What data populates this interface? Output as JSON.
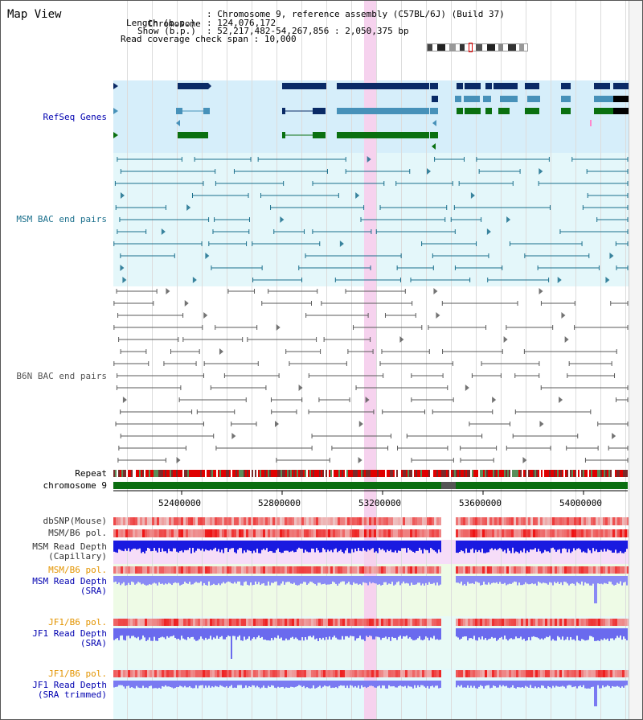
{
  "view_title": "Map View",
  "info": {
    "chromosome_label": "Chromosome",
    "chromosome_value": "Chromosome 9, reference assembly (C57BL/6J) (Build 37)",
    "length_label": "Length (b.p.)",
    "length_value": "124,076,172",
    "show_label": "Show (b.p.)",
    "show_value": "52,217,482-54,267,856 : 2,050,375 bp",
    "coverage_label": "Read coverage check span",
    "coverage_value": "10,000"
  },
  "tracks": {
    "refseq": "RefSeq Genes",
    "msm_bac": "MSM BAC end pairs",
    "b6n_bac": "B6N BAC end pairs",
    "repeat": "Repeat",
    "chromosome": "chromosome 9",
    "dbsnp": "dbSNP(Mouse)",
    "msm_b6_pol_1": "MSM/B6 pol.",
    "msm_depth_cap_1": "MSM Read Depth",
    "msm_depth_cap_2": "(Capillary)",
    "msm_b6_pol_2": "MSM/B6 pol.",
    "msm_depth_sra_1": "MSM Read Depth",
    "msm_depth_sra_2": "(SRA)",
    "jf1_b6_pol_1": "JF1/B6 pol.",
    "jf1_depth_sra_1": "JF1 Read Depth",
    "jf1_depth_sra_2": "(SRA)",
    "jf1_b6_pol_2": "JF1/B6 pol.",
    "jf1_depth_trim_1": "JF1 Read Depth",
    "jf1_depth_trim_2": "(SRA trimmed)"
  },
  "axis": {
    "range_bp": [
      52217482,
      54267856
    ],
    "ticks": [
      "52400000",
      "52800000",
      "53200000",
      "53600000",
      "54000000"
    ]
  },
  "colors": {
    "refseq_bg": "#d6eefa",
    "msm_bac_bg": "#e4f7fa",
    "highlight": "#f6d2ee",
    "gene_dark": "#0a2a66",
    "gene_mid": "#4791b9",
    "gene_green": "#0a7010",
    "bac_msm": "#1a6f8c",
    "bac_b6n": "#5a5a5a",
    "chrom_green": "#0b6e10",
    "polymorphism_red": "#e83030",
    "depth_blue": "#1a1ae0",
    "depth_light_blue": "#8a8af5",
    "orange_label": "#e39400",
    "navy_label": "#0000b0"
  }
}
